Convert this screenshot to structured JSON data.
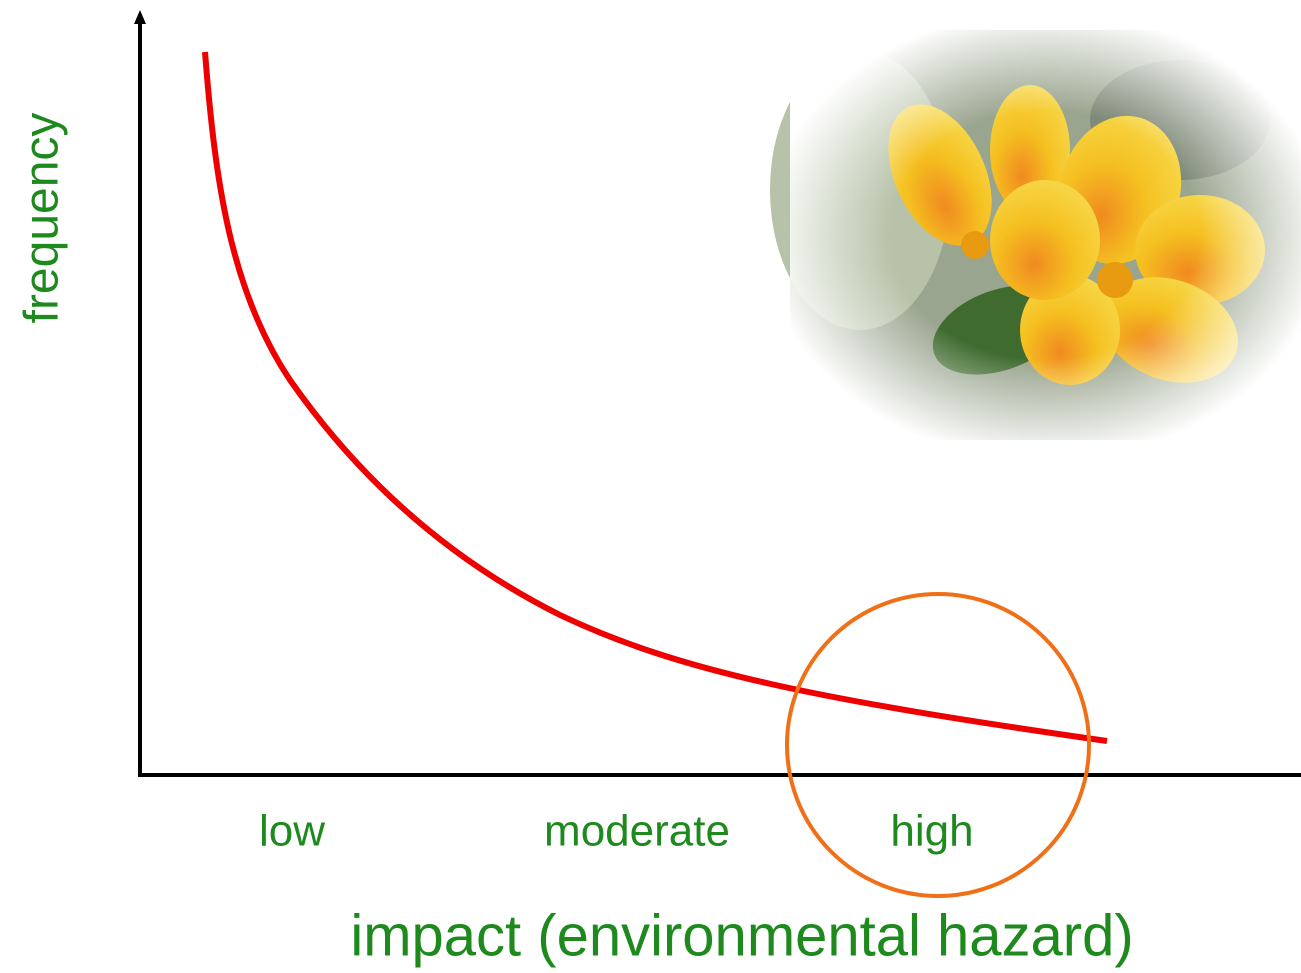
{
  "y_axis": {
    "label": "frequency"
  },
  "x_axis": {
    "categories": [
      "low",
      "moderate",
      "high"
    ],
    "label": "impact (environmental hazard)"
  }
}
